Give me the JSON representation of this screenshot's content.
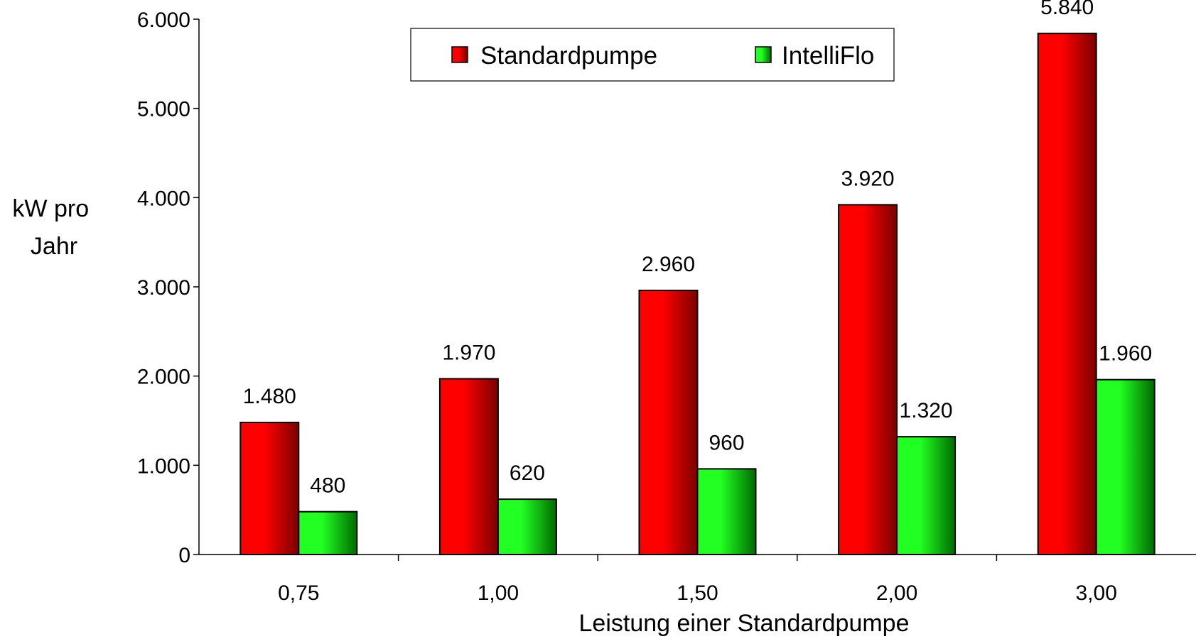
{
  "chart_data": {
    "type": "bar",
    "categories": [
      "0,75",
      "1,00",
      "1,50",
      "2,00",
      "3,00"
    ],
    "series": [
      {
        "name": "Standardpumpe",
        "values": [
          1480,
          1970,
          2960,
          3920,
          5840
        ],
        "labels": [
          "1.480",
          "1.970",
          "2.960",
          "3.920",
          "5.840"
        ],
        "color_light": "#ff0000",
        "color_dark": "#7a0000"
      },
      {
        "name": "IntelliFlo",
        "values": [
          480,
          620,
          960,
          1320,
          1960
        ],
        "labels": [
          "480",
          "620",
          "960",
          "1.320",
          "1.960"
        ],
        "color_light": "#22ff22",
        "color_dark": "#006a00"
      }
    ],
    "xlabel": "Leistung einer Standardpumpe",
    "ylabel_lines": [
      "kW pro",
      "Jahr"
    ],
    "ylim": [
      0,
      6000
    ],
    "yticks": [
      0,
      1000,
      2000,
      3000,
      4000,
      5000,
      6000
    ],
    "ytick_labels": [
      "0",
      "1.000",
      "2.000",
      "3.000",
      "4.000",
      "5.000",
      "6.000"
    ],
    "grid": false,
    "legend_position": "top-center"
  }
}
